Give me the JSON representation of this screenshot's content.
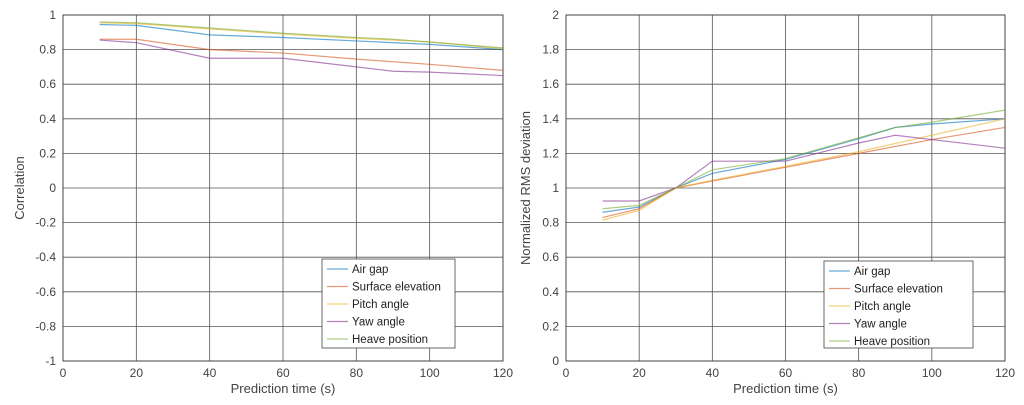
{
  "colors": {
    "Air gap": "#0072BD",
    "Surface elevation": "#D95319",
    "Pitch angle": "#EDB120",
    "Yaw angle": "#7E2F8E",
    "Heave position": "#77AC30"
  },
  "chart_data": [
    {
      "type": "line",
      "xlabel": "Prediction time  (s)",
      "ylabel": "Correlation",
      "xlim": [
        0,
        120
      ],
      "ylim": [
        -1,
        1
      ],
      "xticks": [
        "0",
        "20",
        "40",
        "60",
        "80",
        "100",
        "120"
      ],
      "yticks": [
        "-1",
        "-0.8",
        "-0.6",
        "-0.4",
        "-0.2",
        "0",
        "0.2",
        "0.4",
        "0.6",
        "0.8",
        "1"
      ],
      "grid": true,
      "legend_position": "bottom-right",
      "series": [
        {
          "name": "Air gap",
          "x": [
            10,
            20,
            40,
            60,
            80,
            100,
            120
          ],
          "y": [
            0.945,
            0.94,
            0.885,
            0.87,
            0.85,
            0.83,
            0.8
          ]
        },
        {
          "name": "Surface elevation",
          "x": [
            10,
            20,
            40,
            60,
            80,
            100,
            120
          ],
          "y": [
            0.86,
            0.86,
            0.8,
            0.78,
            0.745,
            0.715,
            0.68
          ]
        },
        {
          "name": "Pitch angle",
          "x": [
            10,
            20,
            40,
            60,
            80,
            100,
            120
          ],
          "y": [
            0.955,
            0.95,
            0.92,
            0.89,
            0.865,
            0.845,
            0.805
          ]
        },
        {
          "name": "Yaw angle",
          "x": [
            10,
            20,
            40,
            60,
            80,
            90,
            100,
            120
          ],
          "y": [
            0.855,
            0.84,
            0.75,
            0.75,
            0.7,
            0.675,
            0.67,
            0.65
          ]
        },
        {
          "name": "Heave position",
          "x": [
            10,
            20,
            40,
            60,
            80,
            90,
            120
          ],
          "y": [
            0.96,
            0.955,
            0.925,
            0.895,
            0.87,
            0.86,
            0.81
          ]
        }
      ]
    },
    {
      "type": "line",
      "xlabel": "Prediction time  (s)",
      "ylabel": "Normalized RMS deviation",
      "xlim": [
        0,
        120
      ],
      "ylim": [
        0,
        2
      ],
      "xticks": [
        "0",
        "20",
        "40",
        "60",
        "80",
        "100",
        "120"
      ],
      "yticks": [
        "0",
        "0.2",
        "0.4",
        "0.6",
        "0.8",
        "1",
        "1.2",
        "1.4",
        "1.6",
        "1.8",
        "2"
      ],
      "grid": true,
      "legend_position": "bottom-right",
      "series": [
        {
          "name": "Air gap",
          "x": [
            10,
            20,
            30,
            40,
            60,
            80,
            90,
            100,
            120
          ],
          "y": [
            0.86,
            0.89,
            1.0,
            1.085,
            1.165,
            1.285,
            1.35,
            1.37,
            1.4
          ]
        },
        {
          "name": "Surface elevation",
          "x": [
            10,
            20,
            30,
            40,
            60,
            80,
            100,
            120
          ],
          "y": [
            0.83,
            0.88,
            1.0,
            1.04,
            1.12,
            1.2,
            1.28,
            1.35
          ]
        },
        {
          "name": "Pitch angle",
          "x": [
            10,
            20,
            30,
            40,
            60,
            80,
            100,
            120
          ],
          "y": [
            0.815,
            0.87,
            1.0,
            1.045,
            1.125,
            1.21,
            1.305,
            1.4
          ]
        },
        {
          "name": "Yaw angle",
          "x": [
            10,
            20,
            30,
            40,
            60,
            80,
            90,
            100,
            120
          ],
          "y": [
            0.925,
            0.925,
            1.0,
            1.155,
            1.155,
            1.26,
            1.305,
            1.28,
            1.23
          ]
        },
        {
          "name": "Heave position",
          "x": [
            10,
            20,
            30,
            40,
            60,
            80,
            90,
            100,
            120
          ],
          "y": [
            0.88,
            0.9,
            1.0,
            1.105,
            1.17,
            1.29,
            1.35,
            1.38,
            1.45
          ]
        }
      ]
    }
  ]
}
